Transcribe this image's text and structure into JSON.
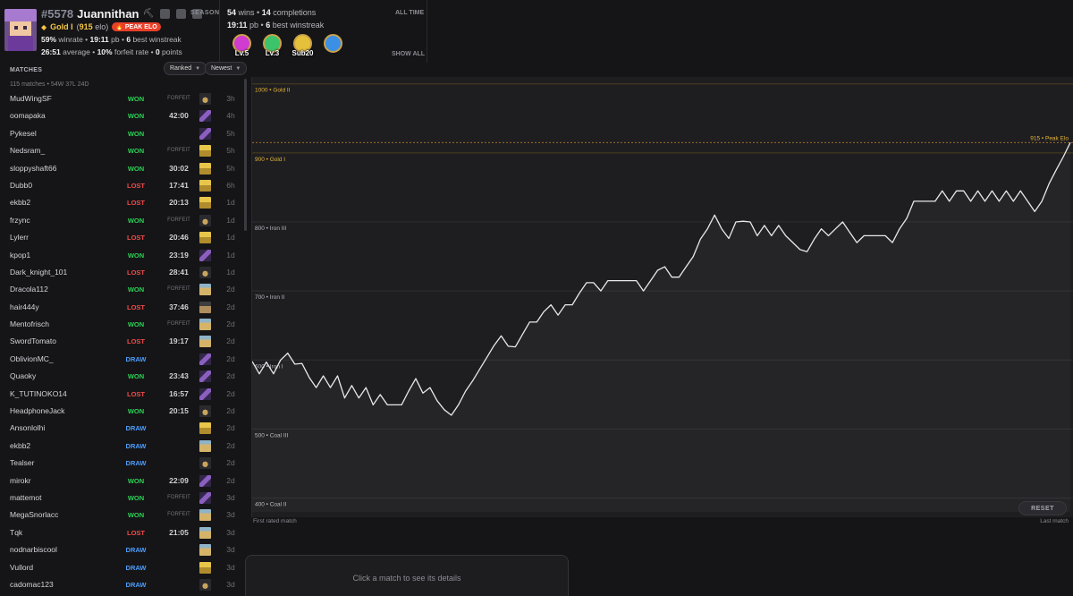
{
  "profile": {
    "id": "#5578",
    "name": "Juannithan",
    "season_label": "SEASON",
    "rank_name": "Gold I",
    "rank_elo_open": "(",
    "elo": "915",
    "elo_suffix": "elo)",
    "peak_badge": "PEAK ELO",
    "winrate": "59%",
    "winrate_label": "winrate •",
    "pb": "19:11",
    "pb_label": "pb •",
    "best_winstreak": "6",
    "best_winstreak_label": "best winstreak",
    "average": "26:51",
    "average_label": "average •",
    "forfeit_rate": "10%",
    "forfeit_rate_label": "forfeit rate •",
    "points": "0",
    "points_label": "points"
  },
  "all_time": {
    "label": "ALL TIME",
    "wins": "54",
    "wins_label": "wins •",
    "completions": "14",
    "completions_label": "completions",
    "pb": "19:11",
    "pb_label": "pb •",
    "best_winstreak": "6",
    "best_winstreak_label": "best winstreak",
    "show_all": "SHOW ALL",
    "medals": [
      {
        "label": "Lv.5",
        "color": "#d03bd0"
      },
      {
        "label": "Lv.3",
        "color": "#3bc46b"
      },
      {
        "label": "Sub20",
        "color": "#e5c13b"
      },
      {
        "label": "",
        "color": "#3b8fe5"
      }
    ]
  },
  "matches": {
    "header": "MATCHES",
    "filter_type": "Ranked",
    "filter_sort": "Newest",
    "summary": "115 matches • 54W 37L 24D",
    "rows": [
      {
        "opponent": "MudWingSF",
        "result": "WON",
        "time": "FORFEIT",
        "seed": "buried",
        "ago": "3h"
      },
      {
        "opponent": "oomapaka",
        "result": "WON",
        "time": "42:00",
        "seed": "ship",
        "ago": "4h"
      },
      {
        "opponent": "Pykesel",
        "result": "WON",
        "time": "",
        "seed": "ship",
        "ago": "5h"
      },
      {
        "opponent": "Nedsram_",
        "result": "WON",
        "time": "FORFEIT",
        "seed": "village",
        "ago": "5h"
      },
      {
        "opponent": "sloppyshaft66",
        "result": "WON",
        "time": "30:02",
        "seed": "village",
        "ago": "5h"
      },
      {
        "opponent": "Dubb0",
        "result": "LOST",
        "time": "17:41",
        "seed": "village",
        "ago": "6h"
      },
      {
        "opponent": "ekbb2",
        "result": "LOST",
        "time": "20:13",
        "seed": "village",
        "ago": "1d"
      },
      {
        "opponent": "frzync",
        "result": "WON",
        "time": "FORFEIT",
        "seed": "buried",
        "ago": "1d"
      },
      {
        "opponent": "Lylerr",
        "result": "LOST",
        "time": "20:46",
        "seed": "village",
        "ago": "1d"
      },
      {
        "opponent": "kpop1",
        "result": "WON",
        "time": "23:19",
        "seed": "ship",
        "ago": "1d"
      },
      {
        "opponent": "Dark_knight_101",
        "result": "LOST",
        "time": "28:41",
        "seed": "buried",
        "ago": "1d"
      },
      {
        "opponent": "Dracola112",
        "result": "WON",
        "time": "FORFEIT",
        "seed": "desert",
        "ago": "2d"
      },
      {
        "opponent": "hair444y",
        "result": "LOST",
        "time": "37:46",
        "seed": "ruined",
        "ago": "2d"
      },
      {
        "opponent": "Mentofrisch",
        "result": "WON",
        "time": "FORFEIT",
        "seed": "desert",
        "ago": "2d"
      },
      {
        "opponent": "SwordTomato",
        "result": "LOST",
        "time": "19:17",
        "seed": "desert",
        "ago": "2d"
      },
      {
        "opponent": "OblivionMC_",
        "result": "DRAW",
        "time": "",
        "seed": "ship",
        "ago": "2d"
      },
      {
        "opponent": "Quaoky",
        "result": "WON",
        "time": "23:43",
        "seed": "ship",
        "ago": "2d"
      },
      {
        "opponent": "K_TUTINOKO14",
        "result": "LOST",
        "time": "16:57",
        "seed": "ship",
        "ago": "2d"
      },
      {
        "opponent": "HeadphoneJack",
        "result": "WON",
        "time": "20:15",
        "seed": "buried",
        "ago": "2d"
      },
      {
        "opponent": "Ansonlolhi",
        "result": "DRAW",
        "time": "",
        "seed": "village",
        "ago": "2d"
      },
      {
        "opponent": "ekbb2",
        "result": "DRAW",
        "time": "",
        "seed": "desert",
        "ago": "2d"
      },
      {
        "opponent": "Tealser",
        "result": "DRAW",
        "time": "",
        "seed": "buried",
        "ago": "2d"
      },
      {
        "opponent": "mirokr",
        "result": "WON",
        "time": "22:09",
        "seed": "ship",
        "ago": "2d"
      },
      {
        "opponent": "mattemot",
        "result": "WON",
        "time": "FORFEIT",
        "seed": "ship",
        "ago": "3d"
      },
      {
        "opponent": "MegaSnorlacc",
        "result": "WON",
        "time": "FORFEIT",
        "seed": "desert",
        "ago": "3d"
      },
      {
        "opponent": "Tqk",
        "result": "LOST",
        "time": "21:05",
        "seed": "desert",
        "ago": "3d"
      },
      {
        "opponent": "nodnarbiscool",
        "result": "DRAW",
        "time": "",
        "seed": "desert",
        "ago": "3d"
      },
      {
        "opponent": "Vullord",
        "result": "DRAW",
        "time": "",
        "seed": "village",
        "ago": "3d"
      },
      {
        "opponent": "cadomac123",
        "result": "DRAW",
        "time": "",
        "seed": "buried",
        "ago": "3d"
      }
    ]
  },
  "chart_data": {
    "type": "line",
    "ylim": [
      380,
      1010
    ],
    "gridlines": [
      {
        "value": 1000,
        "label": "1000 • Gold II",
        "gold": true
      },
      {
        "value": 900,
        "label": "900 • Gold I",
        "gold": true
      },
      {
        "value": 800,
        "label": "800 • Iron III",
        "gold": false
      },
      {
        "value": 700,
        "label": "700 • Iron II",
        "gold": false
      },
      {
        "value": 600,
        "label": "600 • Iron I",
        "gold": false
      },
      {
        "value": 500,
        "label": "500 • Coal III",
        "gold": false
      },
      {
        "value": 400,
        "label": "400 • Coal II",
        "gold": false
      }
    ],
    "peak": {
      "value": 915,
      "label": "915 • Peak Elo"
    },
    "x_start_label": "First rated match",
    "x_end_label": "Last match",
    "values": [
      598,
      580,
      597,
      580,
      600,
      610,
      594,
      595,
      575,
      560,
      577,
      560,
      577,
      545,
      563,
      545,
      560,
      535,
      550,
      535,
      535,
      535,
      555,
      573,
      552,
      560,
      541,
      528,
      520,
      535,
      555,
      570,
      587,
      604,
      621,
      635,
      620,
      619,
      637,
      655,
      655,
      670,
      680,
      665,
      680,
      680,
      697,
      712,
      712,
      700,
      715,
      715,
      715,
      715,
      715,
      700,
      715,
      730,
      735,
      720,
      720,
      735,
      750,
      775,
      790,
      810,
      790,
      776,
      800,
      801,
      800,
      780,
      795,
      780,
      795,
      780,
      770,
      760,
      757,
      775,
      790,
      780,
      790,
      800,
      785,
      770,
      780,
      780,
      780,
      780,
      770,
      790,
      805,
      830,
      830,
      830,
      830,
      845,
      830,
      845,
      845,
      830,
      845,
      830,
      845,
      830,
      845,
      830,
      845,
      830,
      815,
      830,
      855,
      875,
      894,
      915
    ],
    "line_color": "#e8e8ec"
  },
  "reset_label": "RESET",
  "details_placeholder": "Click a match to see its details"
}
